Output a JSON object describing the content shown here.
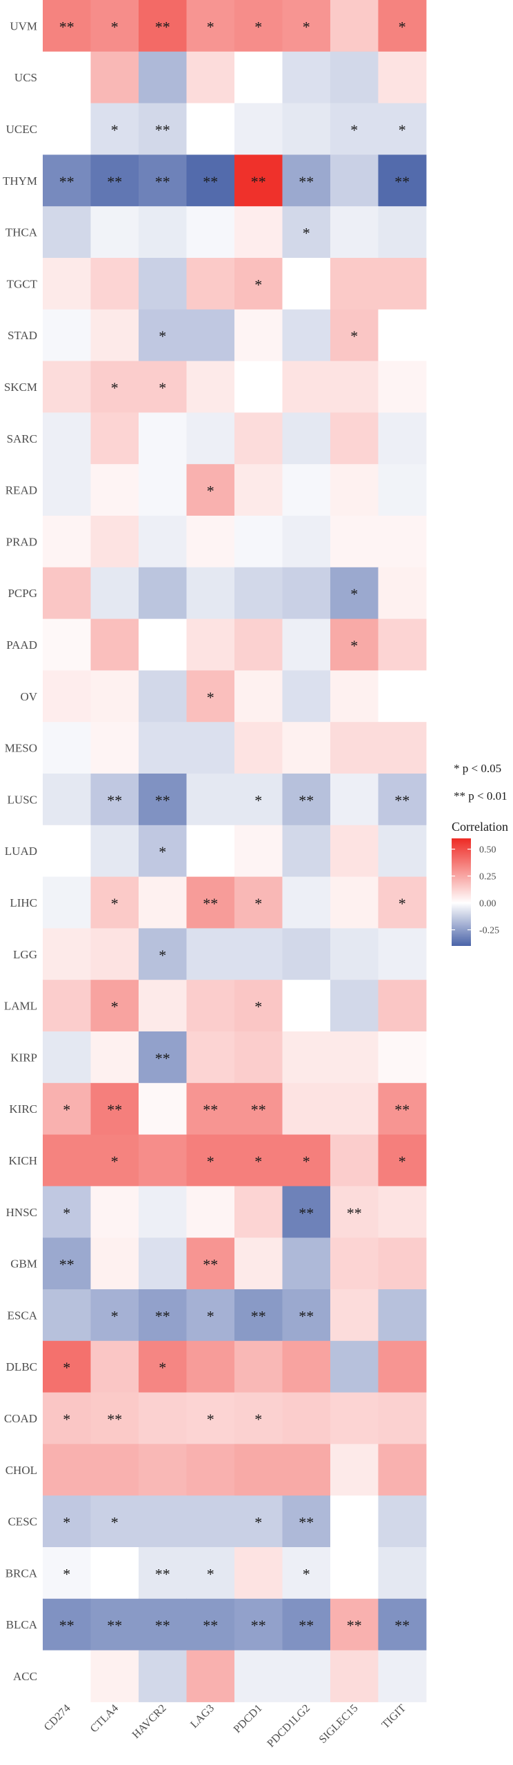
{
  "chart_data": {
    "type": "heatmap",
    "title": "",
    "xlabel": "",
    "ylabel": "",
    "columns": [
      "CD274",
      "CTLA4",
      "HAVCR2",
      "LAG3",
      "PDCD1",
      "PDCD1LG2",
      "SIGLEC15",
      "TIGIT"
    ],
    "rows": [
      "UVM",
      "UCS",
      "UCEC",
      "THYM",
      "THCA",
      "TGCT",
      "STAD",
      "SKCM",
      "SARC",
      "READ",
      "PRAD",
      "PCPG",
      "PAAD",
      "OV",
      "MESO",
      "LUSC",
      "LUAD",
      "LIHC",
      "LGG",
      "LAML",
      "KIRP",
      "KIRC",
      "KICH",
      "HNSC",
      "GBM",
      "ESCA",
      "DLBC",
      "COAD",
      "CHOL",
      "CESC",
      "BRCA",
      "BLCA",
      "ACC"
    ],
    "values": [
      [
        0.35,
        0.32,
        0.42,
        0.3,
        0.32,
        0.3,
        0.15,
        0.35
      ],
      [
        0.0,
        0.2,
        -0.18,
        0.1,
        0.0,
        -0.08,
        -0.1,
        0.08
      ],
      [
        0.0,
        -0.08,
        -0.1,
        0.0,
        -0.04,
        -0.06,
        -0.08,
        -0.08
      ],
      [
        -0.3,
        -0.35,
        -0.32,
        -0.38,
        0.58,
        -0.22,
        -0.12,
        -0.38
      ],
      [
        -0.1,
        -0.03,
        -0.05,
        -0.02,
        0.05,
        -0.1,
        -0.04,
        -0.06
      ],
      [
        0.06,
        0.12,
        -0.12,
        0.15,
        0.18,
        0.0,
        0.15,
        0.15
      ],
      [
        -0.02,
        0.06,
        -0.14,
        -0.14,
        0.03,
        -0.08,
        0.16,
        0.0
      ],
      [
        0.1,
        0.14,
        0.14,
        0.06,
        0.0,
        0.08,
        0.08,
        0.03
      ],
      [
        -0.04,
        0.12,
        -0.02,
        -0.04,
        0.1,
        -0.06,
        0.12,
        -0.04
      ],
      [
        -0.04,
        0.03,
        -0.02,
        0.22,
        0.06,
        -0.02,
        0.04,
        -0.03
      ],
      [
        0.03,
        0.08,
        -0.04,
        0.03,
        -0.02,
        -0.04,
        0.03,
        0.03
      ],
      [
        0.16,
        -0.06,
        -0.15,
        -0.06,
        -0.1,
        -0.12,
        -0.22,
        0.04
      ],
      [
        0.02,
        0.18,
        0.0,
        0.08,
        0.13,
        -0.04,
        0.24,
        0.12
      ],
      [
        0.05,
        0.04,
        -0.1,
        0.18,
        0.04,
        -0.08,
        0.04,
        0.0
      ],
      [
        -0.02,
        0.03,
        -0.08,
        -0.08,
        0.08,
        0.04,
        0.1,
        0.1
      ],
      [
        -0.06,
        -0.14,
        -0.28,
        -0.06,
        -0.06,
        -0.16,
        -0.04,
        -0.14
      ],
      [
        0.0,
        -0.06,
        -0.14,
        0.0,
        0.03,
        -0.1,
        0.08,
        -0.06
      ],
      [
        -0.03,
        0.15,
        0.04,
        0.28,
        0.2,
        -0.04,
        0.04,
        0.14
      ],
      [
        0.06,
        0.08,
        -0.16,
        -0.08,
        -0.08,
        -0.1,
        -0.06,
        -0.04
      ],
      [
        0.14,
        0.26,
        0.06,
        0.14,
        0.16,
        0.0,
        -0.1,
        0.16
      ],
      [
        -0.06,
        0.04,
        -0.24,
        0.12,
        0.14,
        0.06,
        0.06,
        0.02
      ],
      [
        0.22,
        0.36,
        0.02,
        0.3,
        0.3,
        0.08,
        0.08,
        0.3
      ],
      [
        0.35,
        0.35,
        0.32,
        0.36,
        0.36,
        0.36,
        0.14,
        0.36
      ],
      [
        -0.14,
        0.03,
        -0.04,
        0.03,
        0.12,
        -0.32,
        0.1,
        0.08
      ],
      [
        -0.22,
        0.04,
        -0.08,
        0.3,
        0.06,
        -0.18,
        0.12,
        0.14
      ],
      [
        -0.16,
        -0.2,
        -0.24,
        -0.2,
        -0.26,
        -0.22,
        0.1,
        -0.16
      ],
      [
        0.4,
        0.16,
        0.34,
        0.28,
        0.2,
        0.26,
        -0.16,
        0.3
      ],
      [
        0.16,
        0.15,
        0.13,
        0.12,
        0.13,
        0.14,
        0.12,
        0.13
      ],
      [
        0.22,
        0.22,
        0.2,
        0.22,
        0.24,
        0.24,
        0.06,
        0.22
      ],
      [
        -0.14,
        -0.12,
        -0.12,
        -0.12,
        -0.12,
        -0.18,
        0.0,
        -0.1
      ],
      [
        -0.02,
        0.0,
        -0.06,
        -0.06,
        0.08,
        -0.04,
        0.0,
        -0.06
      ],
      [
        -0.28,
        -0.26,
        -0.26,
        -0.26,
        -0.24,
        -0.28,
        0.22,
        -0.28
      ],
      [
        0.0,
        0.04,
        -0.1,
        0.22,
        -0.04,
        -0.04,
        0.1,
        -0.04
      ]
    ],
    "significance": [
      [
        "**",
        "*",
        "**",
        "*",
        "*",
        "*",
        "",
        "*"
      ],
      [
        "",
        "",
        "",
        "",
        "",
        "",
        "",
        ""
      ],
      [
        "",
        "*",
        "**",
        "",
        "",
        "",
        "*",
        "*"
      ],
      [
        "**",
        "**",
        "**",
        "**",
        "**",
        "**",
        "",
        "**"
      ],
      [
        "",
        "",
        "",
        "",
        "",
        "*",
        "",
        ""
      ],
      [
        "",
        "",
        "",
        "",
        "*",
        "",
        "",
        ""
      ],
      [
        "",
        "",
        "*",
        "",
        "",
        "",
        "*",
        ""
      ],
      [
        "",
        "*",
        "*",
        "",
        "",
        "",
        "",
        ""
      ],
      [
        "",
        "",
        "",
        "",
        "",
        "",
        "",
        ""
      ],
      [
        "",
        "",
        "",
        "*",
        "",
        "",
        "",
        ""
      ],
      [
        "",
        "",
        "",
        "",
        "",
        "",
        "",
        ""
      ],
      [
        "",
        "",
        "",
        "",
        "",
        "",
        "*",
        ""
      ],
      [
        "",
        "",
        "",
        "",
        "",
        "",
        "*",
        ""
      ],
      [
        "",
        "",
        "",
        "*",
        "",
        "",
        "",
        ""
      ],
      [
        "",
        "",
        "",
        "",
        "",
        "",
        "",
        ""
      ],
      [
        "",
        "**",
        "**",
        "",
        "*",
        "**",
        "",
        "**"
      ],
      [
        "",
        "",
        "*",
        "",
        "",
        "",
        "",
        ""
      ],
      [
        "",
        "*",
        "",
        "**",
        "*",
        "",
        "",
        "*"
      ],
      [
        "",
        "",
        "*",
        "",
        "",
        "",
        "",
        ""
      ],
      [
        "",
        "*",
        "",
        "",
        "*",
        "",
        "",
        ""
      ],
      [
        "",
        "",
        "**",
        "",
        "",
        "",
        "",
        ""
      ],
      [
        "*",
        "**",
        "",
        "**",
        "**",
        "",
        "",
        "**"
      ],
      [
        "",
        "*",
        "",
        "*",
        "*",
        "*",
        "",
        "*"
      ],
      [
        "*",
        "",
        "",
        "",
        "",
        "**",
        "**",
        ""
      ],
      [
        "**",
        "",
        "",
        "**",
        "",
        "",
        "",
        ""
      ],
      [
        "",
        "*",
        "**",
        "*",
        "**",
        "**",
        "",
        ""
      ],
      [
        "*",
        "",
        "*",
        "",
        "",
        "",
        "",
        ""
      ],
      [
        "*",
        "**",
        "",
        "*",
        "*",
        "",
        "",
        ""
      ],
      [
        "",
        "",
        "",
        "",
        "",
        "",
        "",
        ""
      ],
      [
        "*",
        "*",
        "",
        "",
        "*",
        "**",
        "",
        ""
      ],
      [
        "*",
        "",
        "**",
        "*",
        "",
        "*",
        "",
        ""
      ],
      [
        "**",
        "**",
        "**",
        "**",
        "**",
        "**",
        "**",
        "**"
      ],
      [
        "",
        "",
        "",
        "",
        "",
        "",
        "",
        ""
      ]
    ],
    "legend": {
      "position": "right",
      "significance_items": [
        "* p < 0.05",
        "** p < 0.01"
      ],
      "colorbar_title": "Correlation",
      "colorbar_ticks": [
        0.5,
        0.25,
        0.0,
        -0.25
      ],
      "colorbar_tick_labels": [
        "0.50",
        "0.25",
        "0.00",
        "-0.25"
      ],
      "colorbar_range": [
        -0.4,
        0.6
      ]
    },
    "colors": {
      "low": "#4a63a8",
      "mid": "#ffffff",
      "high": "#ee2a24",
      "panel": "#ebebeb",
      "gridline": "#ffffff"
    }
  }
}
